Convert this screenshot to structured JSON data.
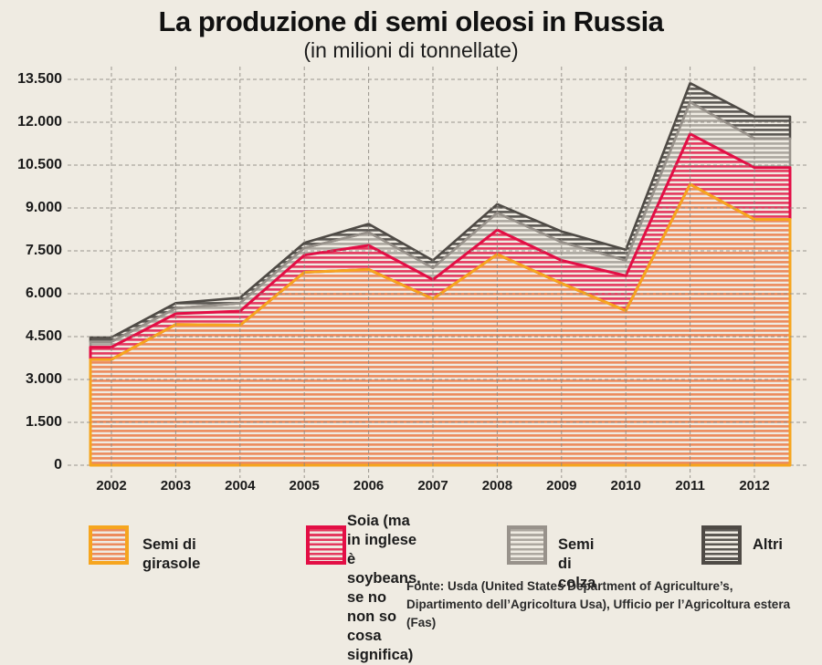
{
  "title": "La produzione di semi oleosi in Russia",
  "subtitle": "(in milioni di tonnellate)",
  "source": {
    "line1": "Fonte: Usda (United States Department of Agriculture’s,",
    "line2": "Dipartimento dell’Agricoltura Usa), Ufficio per l’Agricoltura estera (Fas)"
  },
  "colors": {
    "background": "#EFEBE2",
    "grid": "#8C8780",
    "text": "#1b1b1b",
    "girasole_line": "#F6A51E",
    "girasole_stripe": "#EC8A5C",
    "soia_line": "#E30E45",
    "soia_stripe": "#E4395E",
    "colza_line": "#98928B",
    "colza_stripe": "#ACA79F",
    "altri_line": "#4E4A45",
    "altri_stripe": "#5B5853"
  },
  "chart_data": {
    "type": "area",
    "stacked": true,
    "title": "La produzione di semi oleosi in Russia",
    "subtitle": "(in milioni di tonnellate)",
    "x": [
      2002,
      2003,
      2004,
      2005,
      2006,
      2007,
      2008,
      2009,
      2010,
      2011,
      2012
    ],
    "series": [
      {
        "name": "Semi di girasole",
        "values": [
          3700,
          4925,
          4900,
          6750,
          6850,
          5820,
          7380,
          6365,
          5405,
          9830,
          8600
        ],
        "stripe": "#EC8A5C",
        "line": "#F6A51E"
      },
      {
        "name": "Soia",
        "values": [
          430,
          375,
          490,
          600,
          840,
          670,
          850,
          800,
          1225,
          1760,
          1815
        ],
        "stripe": "#E4395E",
        "line": "#E30E45"
      },
      {
        "name": "Semi di colza",
        "values": [
          190,
          190,
          280,
          250,
          460,
          410,
          600,
          640,
          535,
          1115,
          1015
        ],
        "stripe": "#ACA79F",
        "line": "#98928B"
      },
      {
        "name": "Altri",
        "values": [
          150,
          180,
          190,
          180,
          290,
          265,
          305,
          375,
          375,
          665,
          765
        ],
        "stripe": "#5B5853",
        "line": "#4E4A45"
      }
    ],
    "totals": [
      4470,
      5670,
      5860,
      7780,
      8440,
      7165,
      9135,
      8180,
      7540,
      13370,
      12195
    ],
    "ylim": [
      0,
      13500
    ],
    "ytick_step": 1500,
    "ytick_labels": [
      "0",
      "1.500",
      "3.000",
      "4.500",
      "6.000",
      "7.500",
      "9.000",
      "10.500",
      "12.000",
      "13.500"
    ],
    "grid": true,
    "grid_style": "dashed",
    "hatch": "horizontal-stripes",
    "legend_position": "bottom"
  },
  "legend": {
    "items": [
      {
        "label": "Semi di girasole"
      },
      {
        "label": "Soia (ma in inglese\nè soybeans, se no\nnon so cosa significa)"
      },
      {
        "label": "Semi di colza"
      },
      {
        "label": "Altri"
      }
    ]
  }
}
